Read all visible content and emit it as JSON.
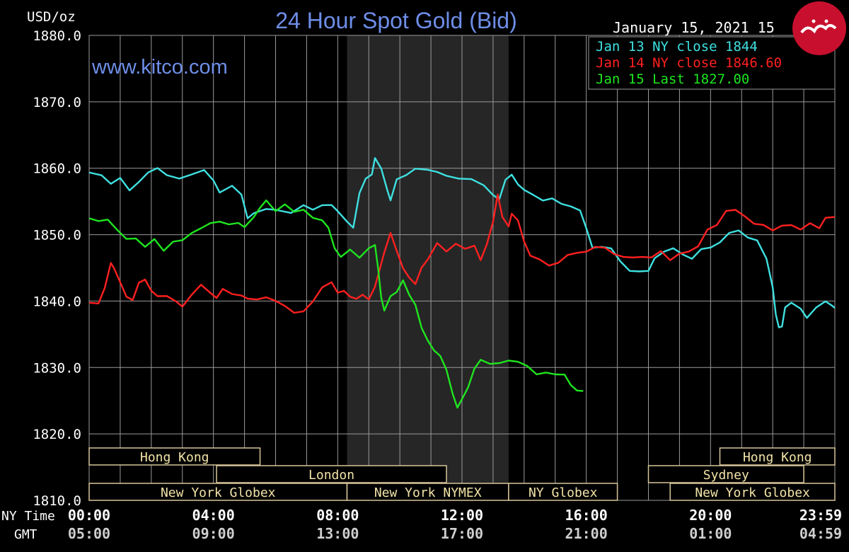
{
  "colors": {
    "background": "#000000",
    "grid": "#9a9a9a",
    "text": "#ffffff",
    "title": "#6e8ee8",
    "watermark": "#6e8ee8",
    "shade": "#262626",
    "session_border": "#d8c69a",
    "session_text": "#f2e3a8",
    "jan13": "#3fe0e0",
    "jan14": "#ff2020",
    "jan15": "#1fe51f"
  },
  "chart_data": {
    "type": "line",
    "title": "24 Hour Spot Gold (Bid)",
    "watermark": "www.kitco.com",
    "date_label": "January 15, 2021 15",
    "ylabel": "USD/oz",
    "ylim": [
      1810,
      1880
    ],
    "yticks": [
      "1880.0",
      "1870.0",
      "1860.0",
      "1850.0",
      "1840.0",
      "1830.0",
      "1820.0",
      "1810.0"
    ],
    "xlim": [
      0,
      24
    ],
    "xaxis_rows": [
      {
        "label": "NY Time",
        "ticks": [
          "00:00",
          "04:00",
          "08:00",
          "12:00",
          "16:00",
          "20:00",
          "23:59"
        ]
      },
      {
        "label": "GMT",
        "ticks": [
          "05:00",
          "09:00",
          "13:00",
          "17:00",
          "21:00",
          "01:00",
          "04:59"
        ]
      }
    ],
    "grid": true,
    "legend_position": "top-right",
    "shaded_hours": [
      8.3,
      13.5
    ],
    "series": [
      {
        "name": "Jan 13 NY close 1844",
        "color_key": "jan13",
        "points": [
          [
            0,
            1859.4
          ],
          [
            0.4,
            1858.9
          ],
          [
            0.7,
            1857.7
          ],
          [
            1.0,
            1858.5
          ],
          [
            1.3,
            1856.7
          ],
          [
            1.6,
            1857.9
          ],
          [
            1.9,
            1859.4
          ],
          [
            2.2,
            1860.0
          ],
          [
            2.5,
            1859.0
          ],
          [
            2.9,
            1858.4
          ],
          [
            3.3,
            1859.1
          ],
          [
            3.7,
            1859.7
          ],
          [
            4.0,
            1858.2
          ],
          [
            4.2,
            1856.3
          ],
          [
            4.6,
            1857.4
          ],
          [
            4.9,
            1856.0
          ],
          [
            5.1,
            1852.5
          ],
          [
            5.3,
            1853.2
          ],
          [
            5.7,
            1853.9
          ],
          [
            6.0,
            1853.7
          ],
          [
            6.5,
            1853.3
          ],
          [
            6.9,
            1854.4
          ],
          [
            7.2,
            1853.8
          ],
          [
            7.5,
            1854.4
          ],
          [
            7.8,
            1854.5
          ],
          [
            8.0,
            1853.5
          ],
          [
            8.3,
            1852.0
          ],
          [
            8.5,
            1851.0
          ],
          [
            8.7,
            1856.3
          ],
          [
            8.9,
            1858.4
          ],
          [
            9.1,
            1859.1
          ],
          [
            9.2,
            1861.5
          ],
          [
            9.4,
            1860.0
          ],
          [
            9.6,
            1856.6
          ],
          [
            9.7,
            1855.2
          ],
          [
            9.9,
            1858.3
          ],
          [
            10.2,
            1859.0
          ],
          [
            10.5,
            1859.9
          ],
          [
            10.9,
            1859.8
          ],
          [
            11.2,
            1859.4
          ],
          [
            11.5,
            1858.9
          ],
          [
            11.9,
            1858.4
          ],
          [
            12.3,
            1858.4
          ],
          [
            12.7,
            1857.4
          ],
          [
            13.0,
            1856.0
          ],
          [
            13.2,
            1855.3
          ],
          [
            13.4,
            1858.3
          ],
          [
            13.6,
            1859.0
          ],
          [
            13.8,
            1857.6
          ],
          [
            14.0,
            1856.7
          ],
          [
            14.3,
            1856.0
          ],
          [
            14.6,
            1855.1
          ],
          [
            14.9,
            1855.5
          ],
          [
            15.2,
            1854.6
          ],
          [
            15.5,
            1854.3
          ],
          [
            15.8,
            1853.6
          ],
          [
            16.0,
            1851.0
          ],
          [
            16.2,
            1848.0
          ],
          [
            16.5,
            1848.2
          ],
          [
            16.8,
            1847.9
          ],
          [
            17.1,
            1846.0
          ],
          [
            17.4,
            1844.5
          ],
          [
            17.7,
            1844.5
          ],
          [
            18.0,
            1844.5
          ],
          [
            18.2,
            1846.5
          ],
          [
            18.5,
            1847.4
          ],
          [
            18.8,
            1848.0
          ],
          [
            19.1,
            1847.0
          ],
          [
            19.4,
            1846.4
          ],
          [
            19.7,
            1847.8
          ],
          [
            20.0,
            1848.1
          ],
          [
            20.3,
            1848.8
          ],
          [
            20.6,
            1850.3
          ],
          [
            20.9,
            1850.6
          ],
          [
            21.2,
            1849.6
          ],
          [
            21.5,
            1849.1
          ],
          [
            21.8,
            1846.4
          ],
          [
            22.0,
            1842.0
          ],
          [
            22.1,
            1838.0
          ],
          [
            22.2,
            1836.0
          ],
          [
            22.3,
            1836.2
          ],
          [
            22.4,
            1839.0
          ],
          [
            22.6,
            1839.8
          ],
          [
            22.9,
            1838.8
          ],
          [
            23.1,
            1837.5
          ],
          [
            23.4,
            1839.0
          ],
          [
            23.7,
            1840.0
          ],
          [
            23.9,
            1839.3
          ],
          [
            24.0,
            1839.0
          ]
        ]
      },
      {
        "name": "Jan 14 NY close 1846.60",
        "color_key": "jan14",
        "points": [
          [
            0,
            1839.8
          ],
          [
            0.3,
            1839.6
          ],
          [
            0.5,
            1842.0
          ],
          [
            0.7,
            1845.7
          ],
          [
            0.8,
            1845.0
          ],
          [
            1.0,
            1842.8
          ],
          [
            1.2,
            1840.7
          ],
          [
            1.4,
            1840.1
          ],
          [
            1.6,
            1842.8
          ],
          [
            1.8,
            1843.2
          ],
          [
            2.0,
            1841.6
          ],
          [
            2.2,
            1840.7
          ],
          [
            2.5,
            1840.8
          ],
          [
            2.8,
            1839.9
          ],
          [
            3.0,
            1839.2
          ],
          [
            3.3,
            1840.9
          ],
          [
            3.6,
            1842.5
          ],
          [
            3.9,
            1841.2
          ],
          [
            4.1,
            1840.5
          ],
          [
            4.3,
            1841.8
          ],
          [
            4.6,
            1841.1
          ],
          [
            4.9,
            1840.8
          ],
          [
            5.1,
            1840.4
          ],
          [
            5.4,
            1840.2
          ],
          [
            5.7,
            1840.6
          ],
          [
            6.0,
            1840.0
          ],
          [
            6.3,
            1839.3
          ],
          [
            6.6,
            1838.2
          ],
          [
            6.9,
            1838.5
          ],
          [
            7.2,
            1839.9
          ],
          [
            7.5,
            1842.1
          ],
          [
            7.8,
            1842.8
          ],
          [
            8.0,
            1841.3
          ],
          [
            8.2,
            1841.5
          ],
          [
            8.4,
            1840.7
          ],
          [
            8.6,
            1840.3
          ],
          [
            8.8,
            1841.0
          ],
          [
            9.0,
            1840.2
          ],
          [
            9.2,
            1842.2
          ],
          [
            9.5,
            1847.3
          ],
          [
            9.7,
            1850.3
          ],
          [
            9.9,
            1847.5
          ],
          [
            10.1,
            1845.0
          ],
          [
            10.3,
            1843.5
          ],
          [
            10.5,
            1842.6
          ],
          [
            10.7,
            1845.0
          ],
          [
            10.9,
            1846.3
          ],
          [
            11.2,
            1848.7
          ],
          [
            11.5,
            1847.5
          ],
          [
            11.8,
            1848.6
          ],
          [
            12.1,
            1847.9
          ],
          [
            12.4,
            1848.3
          ],
          [
            12.6,
            1846.2
          ],
          [
            12.8,
            1848.5
          ],
          [
            13.0,
            1852.0
          ],
          [
            13.15,
            1856.0
          ],
          [
            13.3,
            1852.7
          ],
          [
            13.5,
            1851.2
          ],
          [
            13.6,
            1853.2
          ],
          [
            13.8,
            1852.1
          ],
          [
            14.0,
            1849.0
          ],
          [
            14.2,
            1846.8
          ],
          [
            14.5,
            1846.3
          ],
          [
            14.8,
            1845.3
          ],
          [
            15.1,
            1845.8
          ],
          [
            15.4,
            1846.9
          ],
          [
            15.7,
            1847.3
          ],
          [
            16.0,
            1847.4
          ],
          [
            16.3,
            1848.2
          ],
          [
            16.6,
            1848.0
          ],
          [
            16.9,
            1847.1
          ],
          [
            17.2,
            1846.6
          ],
          [
            17.5,
            1846.6
          ],
          [
            17.8,
            1846.6
          ],
          [
            18.1,
            1846.6
          ],
          [
            18.4,
            1847.5
          ],
          [
            18.7,
            1846.2
          ],
          [
            19.0,
            1847.1
          ],
          [
            19.3,
            1847.5
          ],
          [
            19.6,
            1848.2
          ],
          [
            19.9,
            1850.8
          ],
          [
            20.2,
            1851.4
          ],
          [
            20.5,
            1853.6
          ],
          [
            20.8,
            1853.7
          ],
          [
            21.1,
            1852.8
          ],
          [
            21.4,
            1851.6
          ],
          [
            21.7,
            1851.5
          ],
          [
            22.0,
            1850.6
          ],
          [
            22.3,
            1851.4
          ],
          [
            22.6,
            1851.4
          ],
          [
            22.9,
            1850.8
          ],
          [
            23.2,
            1851.7
          ],
          [
            23.5,
            1851.0
          ],
          [
            23.7,
            1852.5
          ],
          [
            24.0,
            1852.7
          ]
        ]
      },
      {
        "name": "Jan 15 Last 1827.00",
        "color_key": "jan15",
        "points": [
          [
            0,
            1852.5
          ],
          [
            0.3,
            1852.0
          ],
          [
            0.6,
            1852.3
          ],
          [
            0.9,
            1850.7
          ],
          [
            1.2,
            1849.4
          ],
          [
            1.5,
            1849.4
          ],
          [
            1.8,
            1848.2
          ],
          [
            2.1,
            1849.3
          ],
          [
            2.4,
            1847.6
          ],
          [
            2.7,
            1848.9
          ],
          [
            3.0,
            1849.2
          ],
          [
            3.3,
            1850.2
          ],
          [
            3.6,
            1851.0
          ],
          [
            3.9,
            1851.7
          ],
          [
            4.2,
            1852.0
          ],
          [
            4.5,
            1851.5
          ],
          [
            4.8,
            1851.8
          ],
          [
            5.0,
            1851.1
          ],
          [
            5.3,
            1852.7
          ],
          [
            5.5,
            1854.0
          ],
          [
            5.7,
            1855.2
          ],
          [
            6.0,
            1853.5
          ],
          [
            6.3,
            1854.6
          ],
          [
            6.6,
            1853.4
          ],
          [
            6.9,
            1853.8
          ],
          [
            7.2,
            1852.5
          ],
          [
            7.5,
            1852.2
          ],
          [
            7.7,
            1851.0
          ],
          [
            7.9,
            1848.0
          ],
          [
            8.1,
            1846.6
          ],
          [
            8.4,
            1847.8
          ],
          [
            8.7,
            1846.5
          ],
          [
            9.0,
            1848.0
          ],
          [
            9.2,
            1848.4
          ],
          [
            9.3,
            1845.0
          ],
          [
            9.4,
            1840.5
          ],
          [
            9.5,
            1838.6
          ],
          [
            9.7,
            1840.7
          ],
          [
            9.9,
            1841.4
          ],
          [
            10.1,
            1843.1
          ],
          [
            10.3,
            1841.0
          ],
          [
            10.5,
            1839.4
          ],
          [
            10.7,
            1836.0
          ],
          [
            10.9,
            1834.0
          ],
          [
            11.1,
            1832.6
          ],
          [
            11.3,
            1831.7
          ],
          [
            11.5,
            1829.7
          ],
          [
            11.7,
            1826.0
          ],
          [
            11.85,
            1824.0
          ],
          [
            12.0,
            1825.2
          ],
          [
            12.2,
            1827.1
          ],
          [
            12.4,
            1829.8
          ],
          [
            12.6,
            1831.2
          ],
          [
            12.9,
            1830.5
          ],
          [
            13.2,
            1830.7
          ],
          [
            13.5,
            1831.0
          ],
          [
            13.8,
            1830.9
          ],
          [
            14.1,
            1830.2
          ],
          [
            14.4,
            1829.0
          ],
          [
            14.7,
            1829.2
          ],
          [
            15.0,
            1829.0
          ],
          [
            15.3,
            1828.9
          ],
          [
            15.5,
            1827.4
          ],
          [
            15.7,
            1826.5
          ],
          [
            15.9,
            1826.5
          ]
        ]
      }
    ],
    "sessions": [
      {
        "label": "Hong Kong",
        "row": 0,
        "start": 0,
        "end": 5.5
      },
      {
        "label": "London",
        "row": 1,
        "start": 4.1,
        "end": 11.5
      },
      {
        "label": "New York Globex",
        "row": 2,
        "start": 0,
        "end": 8.3
      },
      {
        "label": "New York NYMEX",
        "row": 2,
        "start": 8.3,
        "end": 13.5
      },
      {
        "label": "NY Globex",
        "row": 2,
        "start": 13.5,
        "end": 17.0
      },
      {
        "label": "Hong Kong",
        "row": 0,
        "start": 20.3,
        "end": 24.0
      },
      {
        "label": "Sydney",
        "row": 1,
        "start": 18.0,
        "end": 23.0
      },
      {
        "label": "New York Globex",
        "row": 2,
        "start": 18.7,
        "end": 24.0
      }
    ]
  }
}
